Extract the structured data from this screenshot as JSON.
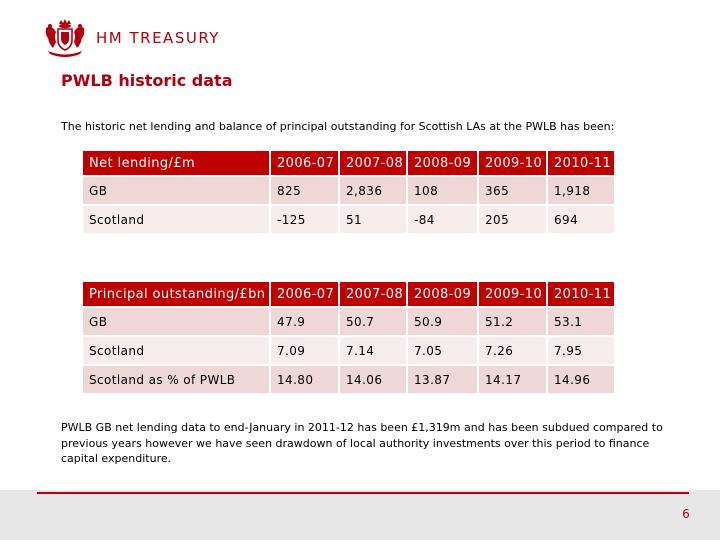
{
  "header": {
    "brand": "HM TREASURY",
    "crest_icon": "royal-crest-icon"
  },
  "slide": {
    "title": "PWLB historic data",
    "intro": "The historic net lending and balance of principal outstanding for Scottish LAs at the PWLB has been:",
    "note": "PWLB GB net lending data to end-January in 2011-12 has been £1,319m and has been subdued compared to previous years however we have seen drawdown of local authority investments over this period to finance capital expenditure.",
    "page_number": "6"
  },
  "colors": {
    "accent": "#b3000f",
    "table_header": "#c00000",
    "row_dark": "#efd7d7",
    "row_light": "#f7ecec",
    "footer_bg": "#e7e7e7"
  },
  "net_lending_table": {
    "header": [
      "Net lending/£m",
      "2006-07",
      "2007-08",
      "2008-09",
      "2009-10",
      "2010-11"
    ],
    "rows": [
      [
        "GB",
        "825",
        "2,836",
        "108",
        "365",
        "1,918"
      ],
      [
        "Scotland",
        "-125",
        "51",
        "-84",
        "205",
        "694"
      ]
    ]
  },
  "principal_table": {
    "header": [
      "Principal outstanding/£bn",
      "2006-07",
      "2007-08",
      "2008-09",
      "2009-10",
      "2010-11"
    ],
    "rows": [
      [
        "GB",
        "47.9",
        "50.7",
        "50.9",
        "51.2",
        "53.1"
      ],
      [
        "Scotland",
        "7.09",
        "7.14",
        "7.05",
        "7.26",
        "7.95"
      ],
      [
        "Scotland as % of PWLB",
        "14.80",
        "14.06",
        "13.87",
        "14.17",
        "14.96"
      ]
    ]
  }
}
